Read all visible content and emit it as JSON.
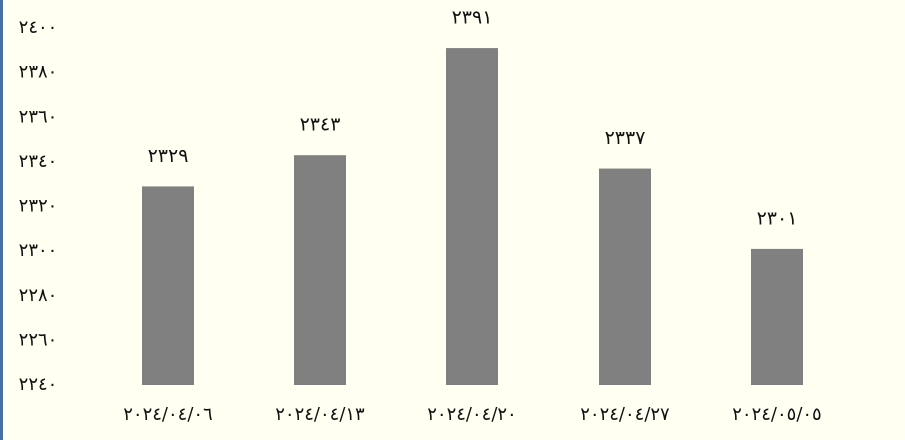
{
  "colors": {
    "background": "#fffff2",
    "bar": "#808080",
    "text": "#111111",
    "left_border": "#4a6fa5"
  },
  "chart_data": {
    "type": "bar",
    "title": "",
    "xlabel": "",
    "ylabel": "",
    "categories": [
      "٢٠٢٤/٠٤/٠٦",
      "٢٠٢٤/٠٤/١٣",
      "٢٠٢٤/٠٤/٢٠",
      "٢٠٢٤/٠٤/٢٧",
      "٢٠٢٤/٠٥/٠٥"
    ],
    "values": [
      2329,
      2343,
      2391,
      2337,
      2301
    ],
    "value_labels": [
      "٢٣٢٩",
      "٢٣٤٣",
      "٢٣٩١",
      "٢٣٣٧",
      "٢٣٠١"
    ],
    "ylim": [
      2240,
      2400
    ],
    "y_ticks": [
      2240,
      2260,
      2280,
      2300,
      2320,
      2340,
      2360,
      2380,
      2400
    ],
    "y_tick_labels": [
      "٢٢٤٠",
      "٢٢٦٠",
      "٢٢٨٠",
      "٢٣٠٠",
      "٢٣٢٠",
      "٢٣٤٠",
      "٢٣٦٠",
      "٢٣٨٠",
      "٢٤٠٠"
    ],
    "grid": false,
    "legend": "none"
  }
}
